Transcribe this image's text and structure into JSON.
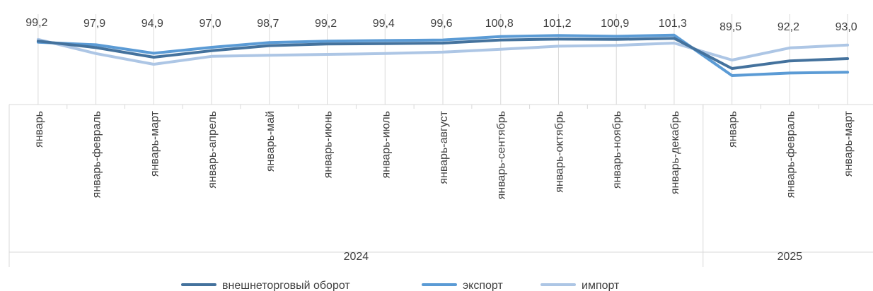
{
  "chart_data": {
    "type": "line",
    "categories": [
      "январь",
      "январь-февраль",
      "январь-март",
      "январь-апрель",
      "январь-май",
      "январь-июнь",
      "январь-июль",
      "январь-август",
      "январь-сентябрь",
      "январь-октябрь",
      "январь-ноябрь",
      "январь-декабрь",
      "январь",
      "январь-февраль",
      "январь-март"
    ],
    "groups": [
      {
        "label": "2024",
        "count": 12
      },
      {
        "label": "2025",
        "count": 3
      }
    ],
    "series": [
      {
        "name": "внешнеторговый оборот",
        "color": "#44729d",
        "values": [
          99.2,
          96.9,
          93.5,
          95.8,
          97.6,
          98.2,
          98.3,
          98.5,
          99.6,
          99.9,
          99.8,
          100.2,
          89.5,
          92.2,
          93.0
        ]
      },
      {
        "name": "экспорт",
        "color": "#5b9bd5",
        "values": [
          98.8,
          97.9,
          94.9,
          97.0,
          98.7,
          99.2,
          99.4,
          99.6,
          100.8,
          101.2,
          100.9,
          101.3,
          87.0,
          87.9,
          88.2
        ]
      },
      {
        "name": "импорт",
        "color": "#adc6e5",
        "values": [
          99.8,
          94.8,
          91.0,
          93.8,
          94.2,
          94.5,
          94.8,
          95.3,
          96.3,
          97.4,
          97.7,
          98.5,
          92.5,
          96.8,
          97.8
        ]
      }
    ],
    "data_labels": [
      "99,2",
      "97,9",
      "94,9",
      "97,0",
      "98,7",
      "99,2",
      "99,4",
      "99,6",
      "100,8",
      "101,2",
      "100,9",
      "101,3",
      "89,5",
      "92,2",
      "93,0"
    ],
    "legend_position": "bottom",
    "grid": false,
    "ylim": [
      70,
      110
    ]
  }
}
